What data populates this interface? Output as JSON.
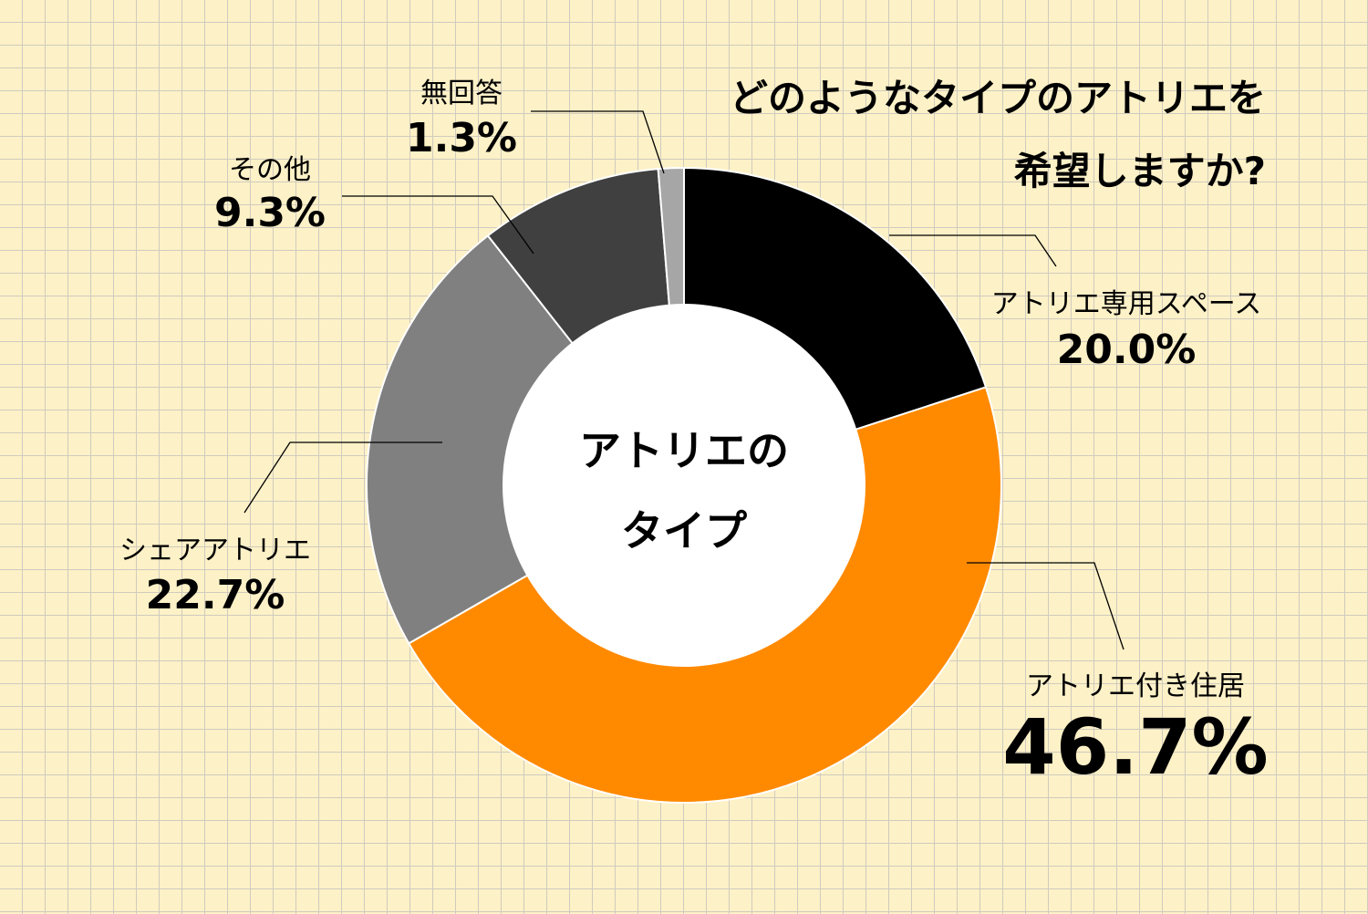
{
  "chart_data": {
    "type": "donut",
    "title_lines": [
      "どのようなタイプのアトリエを",
      "希望しますか?"
    ],
    "center_label_lines": [
      "アトリエの",
      "タイプ"
    ],
    "slices": [
      {
        "label": "アトリエ専用スペース",
        "value": 20.0,
        "display": "20.0%",
        "color": "#000000"
      },
      {
        "label": "アトリエ付き住居",
        "value": 46.7,
        "display": "46.7%",
        "color": "#ff8a00"
      },
      {
        "label": "シェアアトリエ",
        "value": 22.7,
        "display": "22.7%",
        "color": "#808080"
      },
      {
        "label": "その他",
        "value": 9.3,
        "display": "9.3%",
        "color": "#404040"
      },
      {
        "label": "無回答",
        "value": 1.3,
        "display": "1.3%",
        "color": "#a6a6a6"
      }
    ],
    "start": "12 o'clock",
    "direction": "clockwise",
    "legend": "none"
  }
}
